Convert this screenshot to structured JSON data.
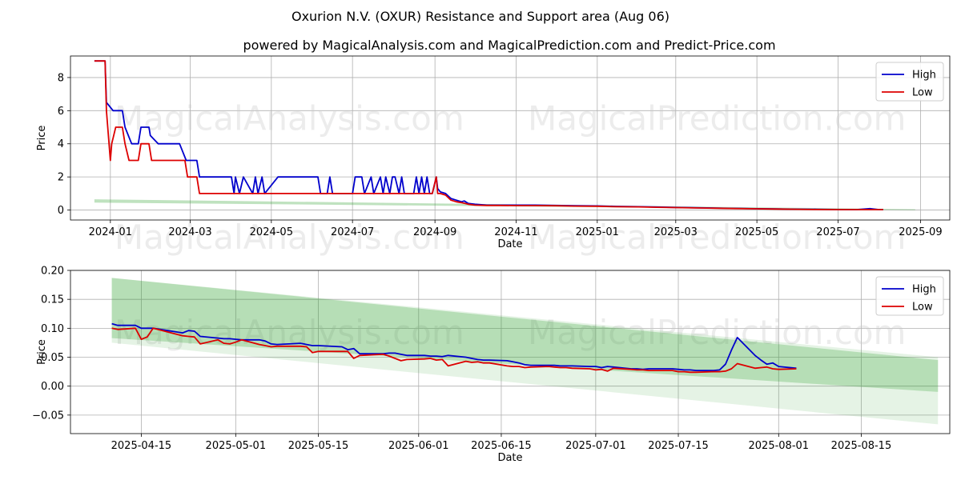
{
  "title": "Oxurion N.V. (OXUR) Resistance and Support area (Aug 06)",
  "subtitle": "powered by MagicalAnalysis.com and MagicalPrediction.com and Predict-Price.com",
  "watermarks": [
    "MagicalAnalysis.com",
    "MagicalPrediction.com"
  ],
  "colors": {
    "high": "#0000cc",
    "low": "#dd0000",
    "band_dark": "#2ca02c",
    "band_light": "#2ca02c"
  },
  "chart_data": [
    {
      "type": "line",
      "xlabel": "Date",
      "ylabel": "Price",
      "xlim": [
        "2023-12-02",
        "2025-09-23"
      ],
      "ylim": [
        -0.6,
        9.3
      ],
      "xticks": [
        "2024-01",
        "2024-03",
        "2024-05",
        "2024-07",
        "2024-09",
        "2024-11",
        "2025-01",
        "2025-03",
        "2025-05",
        "2025-07",
        "2025-09"
      ],
      "yticks": [
        0,
        2,
        4,
        6,
        8
      ],
      "grid": true,
      "legend": "top-right",
      "band": {
        "start": "2023-12-20",
        "end": "2025-08-28",
        "upper": [
          0.65,
          0.05
        ],
        "lower": [
          0.45,
          0.0
        ]
      },
      "series": [
        {
          "name": "High",
          "color": "#0000cc",
          "x": [
            "2023-12-20",
            "2023-12-27",
            "2023-12-28",
            "2023-12-29",
            "2024-01-03",
            "2024-01-05",
            "2024-01-08",
            "2024-01-10",
            "2024-01-12",
            "2024-01-17",
            "2024-01-19",
            "2024-01-22",
            "2024-01-24",
            "2024-01-28",
            "2024-01-30",
            "2024-01-31",
            "2024-02-06",
            "2024-02-08",
            "2024-02-20",
            "2024-02-22",
            "2024-02-27",
            "2024-03-02",
            "2024-03-04",
            "2024-03-06",
            "2024-03-08",
            "2024-04-01",
            "2024-04-03",
            "2024-04-04",
            "2024-04-07",
            "2024-04-10",
            "2024-04-17",
            "2024-04-19",
            "2024-04-21",
            "2024-04-24",
            "2024-04-26",
            "2024-05-06",
            "2024-05-08",
            "2024-05-10",
            "2024-05-13",
            "2024-06-05",
            "2024-06-07",
            "2024-06-12",
            "2024-06-14",
            "2024-06-16",
            "2024-06-17",
            "2024-06-20",
            "2024-07-01",
            "2024-07-03",
            "2024-07-08",
            "2024-07-10",
            "2024-07-15",
            "2024-07-17",
            "2024-07-22",
            "2024-07-24",
            "2024-07-26",
            "2024-07-29",
            "2024-07-31",
            "2024-08-02",
            "2024-08-05",
            "2024-08-07",
            "2024-08-09",
            "2024-08-12",
            "2024-08-14",
            "2024-08-16",
            "2024-08-18",
            "2024-08-20",
            "2024-08-22",
            "2024-08-24",
            "2024-08-26",
            "2024-08-28",
            "2024-08-30",
            "2024-09-02",
            "2024-09-03",
            "2024-09-05",
            "2024-09-09",
            "2024-09-13",
            "2024-09-17",
            "2024-09-21",
            "2024-09-23",
            "2024-09-26",
            "2024-10-01",
            "2024-10-10",
            "2024-10-20",
            "2024-11-01",
            "2024-11-15",
            "2024-12-01",
            "2024-12-15",
            "2025-01-01",
            "2025-01-15",
            "2025-02-01",
            "2025-02-15",
            "2025-03-01",
            "2025-03-15",
            "2025-04-01",
            "2025-04-15",
            "2025-05-01",
            "2025-05-15",
            "2025-06-01",
            "2025-06-15",
            "2025-07-01",
            "2025-07-15",
            "2025-07-25",
            "2025-07-31",
            "2025-08-04"
          ],
          "y": [
            9.0,
            9.0,
            9.0,
            6.5,
            6.0,
            6.0,
            6.0,
            6.0,
            5.0,
            4.0,
            4.0,
            4.0,
            5.0,
            5.0,
            5.0,
            4.5,
            4.0,
            4.0,
            4.0,
            4.0,
            3.0,
            3.0,
            3.0,
            3.0,
            2.0,
            2.0,
            1.0,
            2.0,
            1.0,
            2.0,
            1.0,
            2.0,
            1.0,
            2.0,
            1.0,
            2.0,
            2.0,
            2.0,
            2.0,
            2.0,
            1.0,
            1.0,
            2.0,
            1.0,
            1.0,
            1.0,
            1.0,
            2.0,
            2.0,
            1.0,
            2.0,
            1.0,
            2.0,
            1.0,
            2.0,
            1.0,
            2.0,
            2.0,
            1.0,
            2.0,
            1.0,
            1.0,
            1.0,
            1.0,
            2.0,
            1.0,
            2.0,
            1.0,
            2.0,
            1.0,
            1.0,
            2.0,
            1.3,
            1.1,
            1.0,
            0.7,
            0.6,
            0.5,
            0.55,
            0.4,
            0.35,
            0.3,
            0.3,
            0.3,
            0.3,
            0.28,
            0.26,
            0.25,
            0.22,
            0.2,
            0.18,
            0.16,
            0.14,
            0.12,
            0.1,
            0.08,
            0.07,
            0.053,
            0.045,
            0.035,
            0.03,
            0.084,
            0.035,
            0.031
          ]
        },
        {
          "name": "Low",
          "color": "#dd0000",
          "x": [
            "2023-12-20",
            "2023-12-27",
            "2023-12-28",
            "2023-12-29",
            "2024-01-01",
            "2024-01-02",
            "2024-01-05",
            "2024-01-08",
            "2024-01-10",
            "2024-01-12",
            "2024-01-15",
            "2024-01-22",
            "2024-01-24",
            "2024-01-26",
            "2024-01-30",
            "2024-02-01",
            "2024-02-08",
            "2024-02-20",
            "2024-02-26",
            "2024-02-28",
            "2024-03-02",
            "2024-03-06",
            "2024-03-08",
            "2024-04-01",
            "2024-06-01",
            "2024-07-01",
            "2024-08-01",
            "2024-08-30",
            "2024-09-02",
            "2024-09-03",
            "2024-09-05",
            "2024-09-09",
            "2024-09-13",
            "2024-09-17",
            "2024-09-21",
            "2024-09-26",
            "2024-10-01",
            "2024-10-10",
            "2024-10-20",
            "2024-11-01",
            "2024-11-15",
            "2024-12-01",
            "2024-12-15",
            "2025-01-01",
            "2025-01-15",
            "2025-02-01",
            "2025-02-15",
            "2025-03-01",
            "2025-03-15",
            "2025-04-01",
            "2025-04-15",
            "2025-05-01",
            "2025-05-15",
            "2025-06-01",
            "2025-06-15",
            "2025-07-01",
            "2025-07-15",
            "2025-07-25",
            "2025-07-31",
            "2025-08-04"
          ],
          "y": [
            9.0,
            9.0,
            9.0,
            6.0,
            3.0,
            4.0,
            5.0,
            5.0,
            5.0,
            4.0,
            3.0,
            3.0,
            4.0,
            4.0,
            4.0,
            3.0,
            3.0,
            3.0,
            3.0,
            2.0,
            2.0,
            2.0,
            1.0,
            1.0,
            1.0,
            1.0,
            1.0,
            1.0,
            2.0,
            1.0,
            1.0,
            0.9,
            0.6,
            0.5,
            0.45,
            0.35,
            0.3,
            0.28,
            0.28,
            0.27,
            0.27,
            0.26,
            0.24,
            0.23,
            0.2,
            0.19,
            0.17,
            0.15,
            0.13,
            0.11,
            0.09,
            0.075,
            0.06,
            0.047,
            0.035,
            0.028,
            0.026,
            0.03,
            0.03,
            0.03
          ]
        }
      ]
    },
    {
      "type": "line",
      "xlabel": "Date",
      "ylabel": "Price",
      "xlim": [
        "2025-04-03",
        "2025-08-30"
      ],
      "ylim": [
        -0.082,
        0.2
      ],
      "xticks": [
        "2025-04-15",
        "2025-05-01",
        "2025-05-15",
        "2025-06-01",
        "2025-06-15",
        "2025-07-01",
        "2025-07-15",
        "2025-08-01",
        "2025-08-15"
      ],
      "yticks": [
        -0.05,
        0.0,
        0.05,
        0.1,
        0.15,
        0.2
      ],
      "grid": true,
      "legend": "top-right",
      "band_inner": {
        "start": "2025-04-10",
        "end": "2025-08-28",
        "upper": [
          0.187,
          0.045
        ],
        "lower": [
          0.083,
          -0.01
        ]
      },
      "band_outer": {
        "start": "2025-04-10",
        "end": "2025-08-28",
        "upper": [
          0.187,
          0.05
        ],
        "lower": [
          0.075,
          -0.066
        ]
      },
      "series": [
        {
          "name": "High",
          "color": "#0000cc",
          "x": [
            "2025-04-10",
            "2025-04-11",
            "2025-04-14",
            "2025-04-15",
            "2025-04-17",
            "2025-04-22",
            "2025-04-23",
            "2025-04-24",
            "2025-04-25",
            "2025-04-28",
            "2025-04-29",
            "2025-04-30",
            "2025-05-01",
            "2025-05-02",
            "2025-05-05",
            "2025-05-06",
            "2025-05-07",
            "2025-05-08",
            "2025-05-12",
            "2025-05-13",
            "2025-05-14",
            "2025-05-15",
            "2025-05-19",
            "2025-05-20",
            "2025-05-21",
            "2025-05-22",
            "2025-05-26",
            "2025-05-27",
            "2025-05-28",
            "2025-05-29",
            "2025-05-30",
            "2025-06-02",
            "2025-06-03",
            "2025-06-04",
            "2025-06-05",
            "2025-06-06",
            "2025-06-09",
            "2025-06-10",
            "2025-06-11",
            "2025-06-12",
            "2025-06-13",
            "2025-06-16",
            "2025-06-17",
            "2025-06-18",
            "2025-06-19",
            "2025-06-20",
            "2025-06-23",
            "2025-06-24",
            "2025-06-25",
            "2025-06-26",
            "2025-06-27",
            "2025-06-30",
            "2025-07-01",
            "2025-07-02",
            "2025-07-03",
            "2025-07-04",
            "2025-07-07",
            "2025-07-08",
            "2025-07-09",
            "2025-07-10",
            "2025-07-11",
            "2025-07-14",
            "2025-07-15",
            "2025-07-16",
            "2025-07-17",
            "2025-07-18",
            "2025-07-21",
            "2025-07-22",
            "2025-07-23",
            "2025-07-24",
            "2025-07-25",
            "2025-07-28",
            "2025-07-29",
            "2025-07-30",
            "2025-07-31",
            "2025-08-01",
            "2025-08-04"
          ],
          "y": [
            0.108,
            0.105,
            0.105,
            0.1,
            0.1,
            0.092,
            0.096,
            0.095,
            0.086,
            0.083,
            0.082,
            0.082,
            0.081,
            0.08,
            0.08,
            0.078,
            0.073,
            0.072,
            0.074,
            0.072,
            0.07,
            0.07,
            0.068,
            0.063,
            0.065,
            0.056,
            0.056,
            0.057,
            0.057,
            0.055,
            0.053,
            0.053,
            0.052,
            0.052,
            0.051,
            0.053,
            0.05,
            0.048,
            0.046,
            0.045,
            0.045,
            0.044,
            0.042,
            0.04,
            0.037,
            0.036,
            0.036,
            0.036,
            0.035,
            0.035,
            0.035,
            0.034,
            0.034,
            0.032,
            0.034,
            0.033,
            0.03,
            0.03,
            0.029,
            0.03,
            0.03,
            0.03,
            0.029,
            0.028,
            0.028,
            0.027,
            0.027,
            0.028,
            0.038,
            0.062,
            0.084,
            0.053,
            0.045,
            0.038,
            0.04,
            0.034,
            0.031
          ],
          "x_last": "2025-08-04"
        },
        {
          "name": "Low",
          "color": "#dd0000",
          "x": [
            "2025-04-10",
            "2025-04-11",
            "2025-04-14",
            "2025-04-15",
            "2025-04-16",
            "2025-04-17",
            "2025-04-22",
            "2025-04-23",
            "2025-04-24",
            "2025-04-25",
            "2025-04-28",
            "2025-04-29",
            "2025-04-30",
            "2025-05-01",
            "2025-05-02",
            "2025-05-05",
            "2025-05-06",
            "2025-05-07",
            "2025-05-08",
            "2025-05-12",
            "2025-05-13",
            "2025-05-14",
            "2025-05-15",
            "2025-05-19",
            "2025-05-20",
            "2025-05-21",
            "2025-05-22",
            "2025-05-26",
            "2025-05-27",
            "2025-05-28",
            "2025-05-29",
            "2025-05-30",
            "2025-06-02",
            "2025-06-03",
            "2025-06-04",
            "2025-06-05",
            "2025-06-06",
            "2025-06-09",
            "2025-06-10",
            "2025-06-11",
            "2025-06-12",
            "2025-06-13",
            "2025-06-16",
            "2025-06-17",
            "2025-06-18",
            "2025-06-19",
            "2025-06-20",
            "2025-06-23",
            "2025-06-24",
            "2025-06-25",
            "2025-06-26",
            "2025-06-27",
            "2025-06-30",
            "2025-07-01",
            "2025-07-02",
            "2025-07-03",
            "2025-07-04",
            "2025-07-07",
            "2025-07-08",
            "2025-07-09",
            "2025-07-10",
            "2025-07-11",
            "2025-07-14",
            "2025-07-15",
            "2025-07-16",
            "2025-07-17",
            "2025-07-18",
            "2025-07-21",
            "2025-07-22",
            "2025-07-23",
            "2025-07-24",
            "2025-07-25",
            "2025-07-28",
            "2025-07-29",
            "2025-07-30",
            "2025-07-31",
            "2025-08-01",
            "2025-08-04"
          ],
          "y": [
            0.1,
            0.098,
            0.1,
            0.081,
            0.085,
            0.1,
            0.087,
            0.086,
            0.085,
            0.073,
            0.08,
            0.074,
            0.073,
            0.076,
            0.08,
            0.072,
            0.07,
            0.068,
            0.069,
            0.069,
            0.068,
            0.058,
            0.06,
            0.06,
            0.06,
            0.048,
            0.053,
            0.055,
            0.052,
            0.048,
            0.044,
            0.046,
            0.047,
            0.048,
            0.045,
            0.046,
            0.035,
            0.043,
            0.041,
            0.042,
            0.04,
            0.04,
            0.035,
            0.034,
            0.034,
            0.032,
            0.033,
            0.034,
            0.033,
            0.032,
            0.032,
            0.031,
            0.03,
            0.028,
            0.029,
            0.026,
            0.031,
            0.029,
            0.028,
            0.028,
            0.027,
            0.027,
            0.027,
            0.025,
            0.025,
            0.024,
            0.024,
            0.025,
            0.025,
            0.026,
            0.03,
            0.039,
            0.031,
            0.032,
            0.033,
            0.03,
            0.029,
            0.03
          ]
        }
      ]
    }
  ]
}
